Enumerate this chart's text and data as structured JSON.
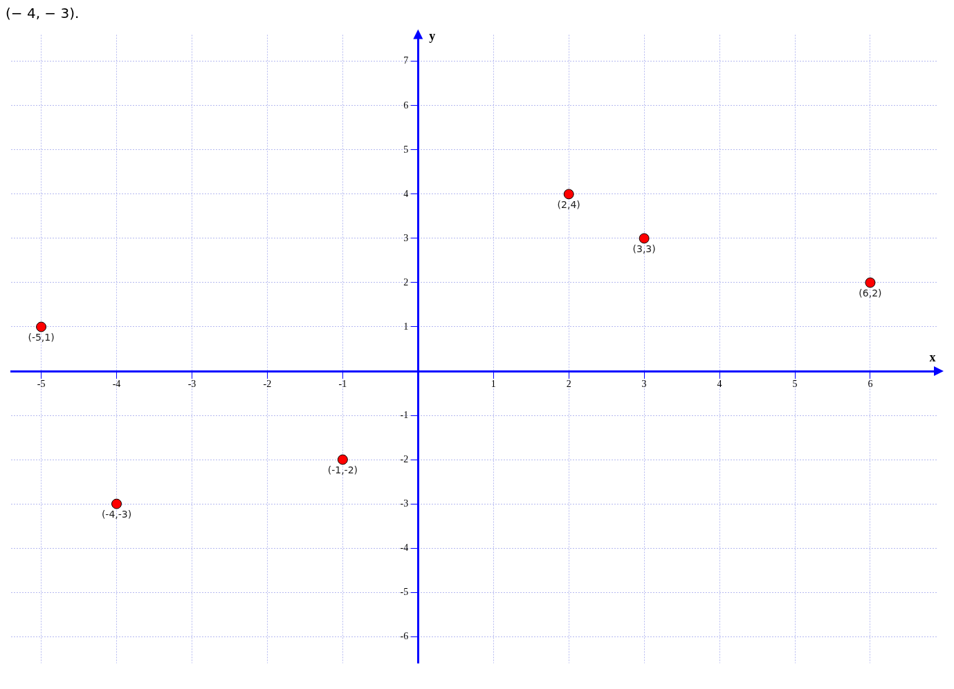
{
  "chart_data": {
    "type": "scatter",
    "xlabel": "x",
    "ylabel": "y",
    "annotations": [
      "(− 4, − 3).",
      {
        "text": "(-5,1)",
        "x": -5,
        "y": 1
      },
      {
        "text": "(-4,-3)",
        "x": -4,
        "y": -3
      },
      {
        "text": "(-1,-2)",
        "x": -1,
        "y": -2
      },
      {
        "text": "(2,4)",
        "x": 2,
        "y": 4
      },
      {
        "text": "(3,3)",
        "x": 3,
        "y": 3
      },
      {
        "text": "(6,2)",
        "x": 6,
        "y": 2
      }
    ],
    "x": [
      -5,
      -4,
      -1,
      2,
      3,
      6
    ],
    "series": [
      {
        "color": "#ff0000",
        "values": [
          1,
          -3,
          -2,
          4,
          3,
          2
        ]
      }
    ],
    "xlim": [
      -5.4,
      6.9
    ],
    "ylim": [
      -6.6,
      7.6
    ],
    "xticks": [
      -5,
      -4,
      -3,
      -2,
      -1,
      1,
      2,
      3,
      4,
      5,
      6
    ],
    "yticks": [
      -6,
      -5,
      -4,
      -3,
      -2,
      -1,
      1,
      2,
      3,
      4,
      5,
      6,
      7
    ],
    "grid": true,
    "marker": "circle",
    "legend": false
  }
}
